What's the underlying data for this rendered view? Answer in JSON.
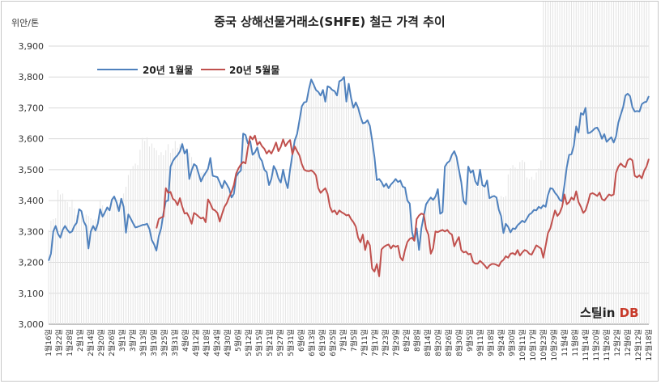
{
  "chart_data": {
    "type": "line",
    "title": "중국 상해선물거래소(SHFE)  철근 가격 추이",
    "unit_label": "위안/톤",
    "ylim": [
      3000,
      3900
    ],
    "yticks": [
      "3,000",
      "3,100",
      "3,200",
      "3,300",
      "3,400",
      "3,500",
      "3,600",
      "3,700",
      "3,800",
      "3,900"
    ],
    "legend": "top-left",
    "x_labels": [
      "1월16일",
      "1월22일",
      "1월28일",
      "2월1일",
      "2월14일",
      "2월20일",
      "2월26일",
      "3월1일",
      "3월7일",
      "3월13일",
      "3월19일",
      "3월25일",
      "3월31일",
      "4월6일",
      "4월12일",
      "4월18일",
      "4월24일",
      "4월30일",
      "5월6일",
      "5월12일",
      "5월15일",
      "5월21일",
      "5월27일",
      "5월31일",
      "6월6일",
      "6월13일",
      "6월19일",
      "6월25일",
      "7월1일",
      "7월5일",
      "7월11일",
      "7월17일",
      "7월23일",
      "7월29일",
      "8월2일",
      "8월8일",
      "8월14일",
      "8월20일",
      "8월26일",
      "8월30일",
      "9월5일",
      "9월11일",
      "9월18일",
      "9월24일",
      "9월30일",
      "10월11일",
      "10월17일",
      "10월23일",
      "10월29일",
      "11월4일",
      "11월8일",
      "11월14일",
      "11월20일",
      "11월26일",
      "12월2일",
      "12월6일",
      "12월12일",
      "12월18일"
    ],
    "series": [
      {
        "name": "20년 1월물",
        "color": "#4f81bd",
        "values": [
          3205,
          3228,
          3300,
          3318,
          3292,
          3280,
          3305,
          3318,
          3305,
          3296,
          3300,
          3318,
          3328,
          3372,
          3366,
          3332,
          3318,
          3245,
          3300,
          3318,
          3303,
          3326,
          3372,
          3348,
          3362,
          3378,
          3368,
          3403,
          3413,
          3394,
          3366,
          3406,
          3380,
          3296,
          3355,
          3342,
          3327,
          3313,
          3315,
          3318,
          3321,
          3322,
          3325,
          3308,
          3272,
          3258,
          3238,
          3285,
          3310,
          3360,
          3398,
          3400,
          3510,
          3528,
          3539,
          3547,
          3559,
          3583,
          3552,
          3565,
          3470,
          3498,
          3518,
          3512,
          3486,
          3462,
          3478,
          3490,
          3503,
          3538,
          3480,
          3478,
          3476,
          3458,
          3440,
          3464,
          3452,
          3438,
          3410,
          3422,
          3478,
          3490,
          3497,
          3617,
          3612,
          3585,
          3592,
          3548,
          3556,
          3572,
          3540,
          3528,
          3500,
          3492,
          3450,
          3470,
          3512,
          3498,
          3472,
          3458,
          3500,
          3465,
          3440,
          3500,
          3550,
          3595,
          3616,
          3660,
          3705,
          3718,
          3720,
          3760,
          3792,
          3776,
          3758,
          3752,
          3740,
          3758,
          3720,
          3770,
          3766,
          3758,
          3754,
          3740,
          3786,
          3790,
          3800,
          3720,
          3778,
          3732,
          3700,
          3718,
          3700,
          3672,
          3650,
          3652,
          3660,
          3642,
          3595,
          3540,
          3466,
          3470,
          3460,
          3445,
          3455,
          3440,
          3452,
          3460,
          3470,
          3460,
          3465,
          3445,
          3442,
          3400,
          3390,
          3298,
          3270,
          3310,
          3240,
          3310,
          3350,
          3388,
          3400,
          3410,
          3402,
          3413,
          3437,
          3357,
          3363,
          3510,
          3522,
          3528,
          3548,
          3560,
          3541,
          3500,
          3460,
          3398,
          3388,
          3510,
          3490,
          3498,
          3462,
          3450,
          3500,
          3450,
          3445,
          3465,
          3408,
          3412,
          3415,
          3410,
          3370,
          3350,
          3295,
          3325,
          3315,
          3297,
          3310,
          3308,
          3320,
          3327,
          3335,
          3330,
          3342,
          3355,
          3360,
          3370,
          3368,
          3380,
          3375,
          3385,
          3380,
          3418,
          3440,
          3438,
          3425,
          3416,
          3402,
          3398,
          3450,
          3508,
          3548,
          3550,
          3578,
          3640,
          3620,
          3683,
          3678,
          3700,
          3618,
          3620,
          3626,
          3634,
          3636,
          3622,
          3600,
          3615,
          3590,
          3598,
          3605,
          3588,
          3608,
          3653,
          3678,
          3702,
          3740,
          3746,
          3738,
          3702,
          3688,
          3690,
          3688,
          3712,
          3718,
          3720,
          3738
        ]
      },
      {
        "name": "20년 5월물",
        "color": "#c0504d",
        "values": [
          3310,
          3340,
          3345,
          3348,
          3440,
          3425,
          3428,
          3406,
          3400,
          3385,
          3408,
          3380,
          3358,
          3360,
          3345,
          3325,
          3360,
          3355,
          3348,
          3342,
          3345,
          3330,
          3404,
          3390,
          3372,
          3368,
          3360,
          3332,
          3357,
          3380,
          3392,
          3412,
          3428,
          3450,
          3488,
          3505,
          3517,
          3525,
          3520,
          3570,
          3608,
          3598,
          3610,
          3580,
          3590,
          3576,
          3568,
          3552,
          3562,
          3552,
          3568,
          3588,
          3560,
          3574,
          3598,
          3576,
          3588,
          3596,
          3550,
          3575,
          3560,
          3546,
          3518,
          3500,
          3496,
          3495,
          3498,
          3492,
          3482,
          3440,
          3425,
          3433,
          3440,
          3422,
          3380,
          3363,
          3368,
          3355,
          3368,
          3362,
          3358,
          3352,
          3354,
          3340,
          3330,
          3316,
          3280,
          3265,
          3290,
          3240,
          3270,
          3255,
          3180,
          3170,
          3195,
          3155,
          3242,
          3250,
          3255,
          3258,
          3245,
          3255,
          3250,
          3254,
          3216,
          3206,
          3240,
          3266,
          3276,
          3280,
          3270,
          3340,
          3352,
          3358,
          3355,
          3308,
          3290,
          3228,
          3246,
          3300,
          3298,
          3302,
          3305,
          3300,
          3305,
          3295,
          3290,
          3252,
          3268,
          3282,
          3240,
          3232,
          3235,
          3226,
          3228,
          3202,
          3196,
          3196,
          3205,
          3198,
          3190,
          3180,
          3190,
          3195,
          3195,
          3192,
          3188,
          3202,
          3208,
          3220,
          3215,
          3228,
          3230,
          3225,
          3240,
          3222,
          3232,
          3240,
          3237,
          3228,
          3225,
          3240,
          3255,
          3250,
          3245,
          3215,
          3254,
          3295,
          3310,
          3340,
          3368,
          3350,
          3360,
          3380,
          3420,
          3388,
          3395,
          3410,
          3402,
          3430,
          3395,
          3380,
          3360,
          3368,
          3392,
          3421,
          3424,
          3420,
          3415,
          3426,
          3405,
          3400,
          3410,
          3420,
          3416,
          3420,
          3490,
          3510,
          3520,
          3512,
          3508,
          3530,
          3536,
          3530,
          3480,
          3475,
          3482,
          3472,
          3496,
          3510,
          3535
        ]
      }
    ]
  },
  "logo": {
    "text_main": "스틸in ",
    "text_accent": "DB"
  }
}
